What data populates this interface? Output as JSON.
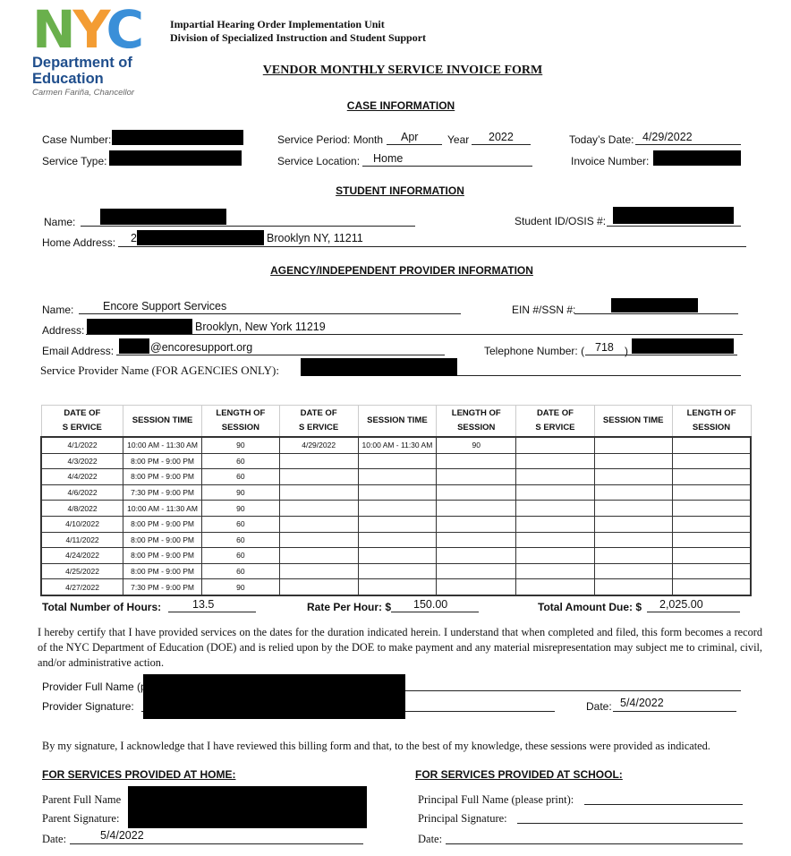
{
  "logo": {
    "letters": [
      "N",
      "Y",
      "C"
    ],
    "dept": "Department of",
    "dept2": "Education",
    "chancellor": "Carmen Fariña, Chancellor",
    "colors": {
      "n": "#6ab04c",
      "y": "#f39c33",
      "c": "#3a8fd8",
      "text": "#1f4e8c"
    }
  },
  "header": {
    "unit": "Impartial Hearing Order Implementation Unit",
    "division": "Division of Specialized Instruction and Student Support",
    "title": "VENDOR MONTHLY SERVICE INVOICE FORM"
  },
  "case": {
    "heading": "CASE INFORMATION",
    "case_number_label": "Case Number:",
    "service_period_label": "Service Period: Month",
    "month": "Apr",
    "year_label": "Year",
    "year": "2022",
    "todays_date_label": "Today’s Date:",
    "todays_date": "4/29/2022",
    "service_type_label": "Service Type:",
    "service_location_label": "Service Location:",
    "service_location": "Home",
    "invoice_number_label": "Invoice Number:"
  },
  "student": {
    "heading": "STUDENT INFORMATION",
    "name_label": "Name:",
    "id_label": "Student ID/OSIS #:",
    "address_label": "Home Address:",
    "address_prefix": "2",
    "address_city": "Brooklyn NY, 11211"
  },
  "provider": {
    "heading": "AGENCY/INDEPENDENT PROVIDER INFORMATION",
    "name_label": "Name:",
    "name": "Encore Support Services",
    "ein_label": "EIN #/SSN #:",
    "address_label": "Address:",
    "address_city": "Brooklyn, New York 11219",
    "email_label": "Email Address:",
    "email_domain": "@encoresupport.org",
    "phone_label": "Telephone Number: (",
    "area_code": "718",
    "phone_close": ")",
    "agency_label": "Service Provider Name (FOR AGENCIES ONLY):"
  },
  "table": {
    "headers": [
      "DATE OF\nS ERVICE",
      "SESSION TIME",
      "LENGTH OF\nSESSION",
      "DATE OF\nS ERVICE",
      "SESSION TIME",
      "LENGTH OF\nSESSION",
      "DATE OF\nS ERVICE",
      "SESSION TIME",
      "LENGTH OF\nSESSION"
    ],
    "rows": [
      [
        "4/1/2022",
        "10:00 AM - 11:30 AM",
        "90",
        "4/29/2022",
        "10:00 AM - 11:30 AM",
        "90",
        "",
        "",
        ""
      ],
      [
        "4/3/2022",
        "8:00 PM - 9:00 PM",
        "60",
        "",
        "",
        "",
        "",
        "",
        ""
      ],
      [
        "4/4/2022",
        "8:00 PM - 9:00 PM",
        "60",
        "",
        "",
        "",
        "",
        "",
        ""
      ],
      [
        "4/6/2022",
        "7:30 PM - 9:00 PM",
        "90",
        "",
        "",
        "",
        "",
        "",
        ""
      ],
      [
        "4/8/2022",
        "10:00 AM - 11:30 AM",
        "90",
        "",
        "",
        "",
        "",
        "",
        ""
      ],
      [
        "4/10/2022",
        "8:00 PM - 9:00 PM",
        "60",
        "",
        "",
        "",
        "",
        "",
        ""
      ],
      [
        "4/11/2022",
        "8:00 PM - 9:00 PM",
        "60",
        "",
        "",
        "",
        "",
        "",
        ""
      ],
      [
        "4/24/2022",
        "8:00 PM - 9:00 PM",
        "60",
        "",
        "",
        "",
        "",
        "",
        ""
      ],
      [
        "4/25/2022",
        "8:00 PM - 9:00 PM",
        "60",
        "",
        "",
        "",
        "",
        "",
        ""
      ],
      [
        "4/27/2022",
        "7:30 PM - 9:00 PM",
        "90",
        "",
        "",
        "",
        "",
        "",
        ""
      ]
    ]
  },
  "totals": {
    "hours_label": "Total Number of Hours:",
    "hours": "13.5",
    "rate_label": "Rate Per Hour: $",
    "rate": "150.00",
    "due_label": "Total Amount Due: $",
    "due": "2,025.00"
  },
  "certification": "I hereby certify that I have provided services on the dates for the duration indicated herein.  I understand that when completed and filed, this form becomes a record of the NYC Department of Education (DOE) and is relied upon by the DOE to make payment and any material misrepresentation may subject me to criminal, civil, and/or administrative action.",
  "signature": {
    "full_name_label": "Provider Full Name (p",
    "signature_label": "Provider Signature:",
    "date_label": "Date:",
    "date": "5/4/2022"
  },
  "acknowledgement": "By my signature, I acknowledge that I have reviewed this billing form and that, to the best of my knowledge, these sessions were provided as indicated.",
  "home": {
    "heading": "FOR SERVICES PROVIDED AT HOME:",
    "parent_name_label": "Parent Full Name",
    "parent_signature_label": "Parent Signature:",
    "date_label": "Date:",
    "date": "5/4/2022"
  },
  "school": {
    "heading": "FOR SERVICES PROVIDED AT SCHOOL:",
    "principal_name_label": "Principal Full Name (please print):",
    "principal_signature_label": "Principal Signature:",
    "date_label": "Date:"
  }
}
